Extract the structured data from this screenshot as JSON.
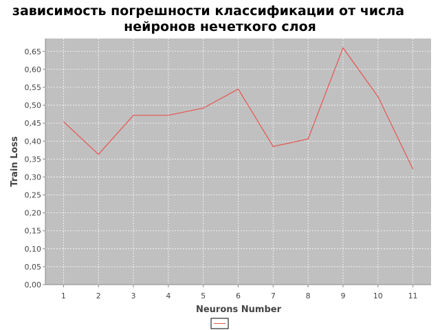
{
  "chart_data": {
    "type": "line",
    "title_lines": [
      "зависимость погрешности классификации от числа",
      "нейронов нечеткого слоя"
    ],
    "xlabel": "Neurons Number",
    "ylabel": "Train Loss",
    "x": [
      1,
      2,
      3,
      4,
      5,
      6,
      7,
      8,
      9,
      10,
      11
    ],
    "x_tick_labels": [
      "1",
      "2",
      "3",
      "4",
      "5",
      "6",
      "7",
      "8",
      "9",
      "10",
      "11"
    ],
    "series": [
      {
        "values": [
          0.454,
          0.363,
          0.472,
          0.472,
          0.492,
          0.545,
          0.385,
          0.406,
          0.66,
          0.524,
          0.322
        ],
        "color": "#e8524f"
      }
    ],
    "ylim": [
      0,
      0.686
    ],
    "y_ticks": [
      0,
      0.05,
      0.1,
      0.15,
      0.2,
      0.25,
      0.3,
      0.35,
      0.4,
      0.45,
      0.5,
      0.55,
      0.6,
      0.65
    ],
    "y_tick_labels": [
      "0,00",
      "0,05",
      "0,10",
      "0,15",
      "0,20",
      "0,25",
      "0,30",
      "0,35",
      "0,40",
      "0,45",
      "0,50",
      "0,55",
      "0,60",
      "0,65"
    ],
    "grid": true,
    "legend": "bottom-center",
    "plot_background": "#c0c0c0",
    "grid_color": "#ffffff",
    "axis_color": "#888888"
  }
}
